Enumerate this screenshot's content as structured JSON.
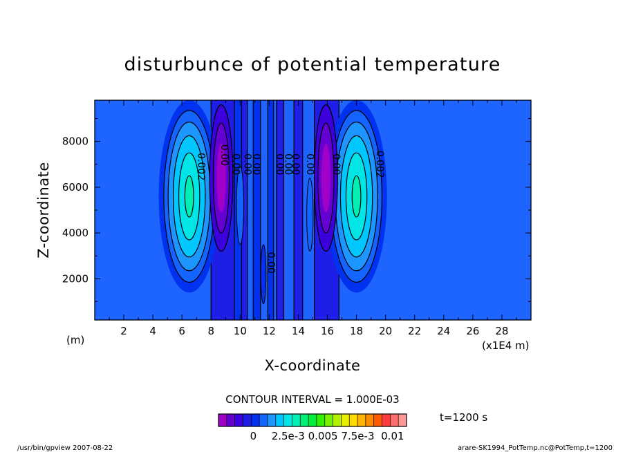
{
  "chart_data": {
    "type": "heatmap",
    "title": "disturbunce of potential temperature",
    "xlabel": "X-coordinate",
    "ylabel": "Z-coordinate",
    "x_unit": "(m)",
    "x_scale_note": "(x1E4 m)",
    "xlim": [
      0,
      30
    ],
    "ylim": [
      200,
      9800
    ],
    "x_ticks": [
      "2",
      "4",
      "6",
      "8",
      "10",
      "12",
      "14",
      "16",
      "18",
      "20",
      "22",
      "24",
      "26",
      "28"
    ],
    "y_ticks": [
      "2000",
      "4000",
      "6000",
      "8000"
    ],
    "contour_interval_text": "CONTOUR INTERVAL = 1.000E-03",
    "time_text": "t=1200 s",
    "colorbar": {
      "labels": [
        "0",
        "2.5e-3",
        "0.005",
        "7.5e-3",
        "0.01"
      ],
      "range": [
        -0.0025,
        0.011
      ],
      "colors": [
        "#a000c8",
        "#6400d2",
        "#3c00dc",
        "#1e1ee6",
        "#0032f0",
        "#1464ff",
        "#1e96ff",
        "#00c8ff",
        "#00e6e6",
        "#00f0b4",
        "#00f078",
        "#00f03c",
        "#32f000",
        "#78f000",
        "#b4f000",
        "#e6f000",
        "#ffdc00",
        "#ffb400",
        "#ff8c00",
        "#ff5a00",
        "#ff3c3c",
        "#ff6e6e",
        "#ff9696"
      ]
    },
    "contour_labels": [
      "0.002",
      "0.00",
      "0.00",
      "0.00",
      "0.00",
      "0.00",
      "0.00",
      "0.00",
      "0.00",
      "0.00",
      "0.002",
      "0.00"
    ],
    "features": [
      {
        "kind": "warm",
        "x": 6.5,
        "z": 5700,
        "peak": 0.0032
      },
      {
        "kind": "warm",
        "x": 18.0,
        "z": 5700,
        "peak": 0.0032
      },
      {
        "kind": "cold",
        "x": 8.7,
        "z": 6700,
        "peak": -0.0022
      },
      {
        "kind": "cold",
        "x": 15.9,
        "z": 6700,
        "peak": -0.0022
      }
    ]
  },
  "footer": {
    "left": "/usr/bin/gpview  2007-08-22",
    "right": "arare-SK1994_PotTemp.nc@PotTemp,t=1200"
  }
}
